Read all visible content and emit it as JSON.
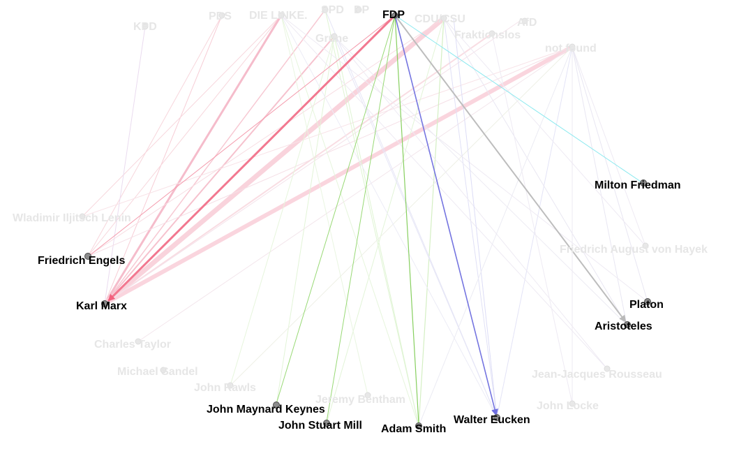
{
  "colors": {
    "pink_faint": "#f4b8c4",
    "pink": "#f58aa0",
    "pink_strong": "#f2607d",
    "green": "#8fd16a",
    "green_faint": "#cfeec0",
    "blue": "#6f6fe0",
    "blue_faint": "#d6d6f4",
    "cyan": "#7fe8ef",
    "gray": "#b9b9b9"
  },
  "nodes": {
    "fdp": "FDP",
    "kpd": "KPD",
    "pds": "PDS",
    "die_linke": "DIE LINKE.",
    "spd": "SPD",
    "dp": "DP",
    "gruene": "Grüne",
    "cdu_csu": "CDU/CSU",
    "afd": "AfD",
    "fraktionslos": "Fraktionslos",
    "not_found": "not found",
    "milton_friedman": "Milton Friedman",
    "lenin": "Wladimir Iljitsch Lenin",
    "hayek": "Friedrich August von Hayek",
    "engels": "Friedrich Engels",
    "marx": "Karl Marx",
    "platon": "Platon",
    "aristoteles": "Aristoteles",
    "taylor": "Charles Taylor",
    "sandel": "Michael Sandel",
    "rousseau": "Jean-Jacques Rousseau",
    "rawls": "John Rawls",
    "bentham": "Jeremy Bentham",
    "keynes": "John Maynard Keynes",
    "locke": "John Locke",
    "mill": "John Stuart Mill",
    "smith": "Adam Smith",
    "eucken": "Walter Eucken"
  }
}
